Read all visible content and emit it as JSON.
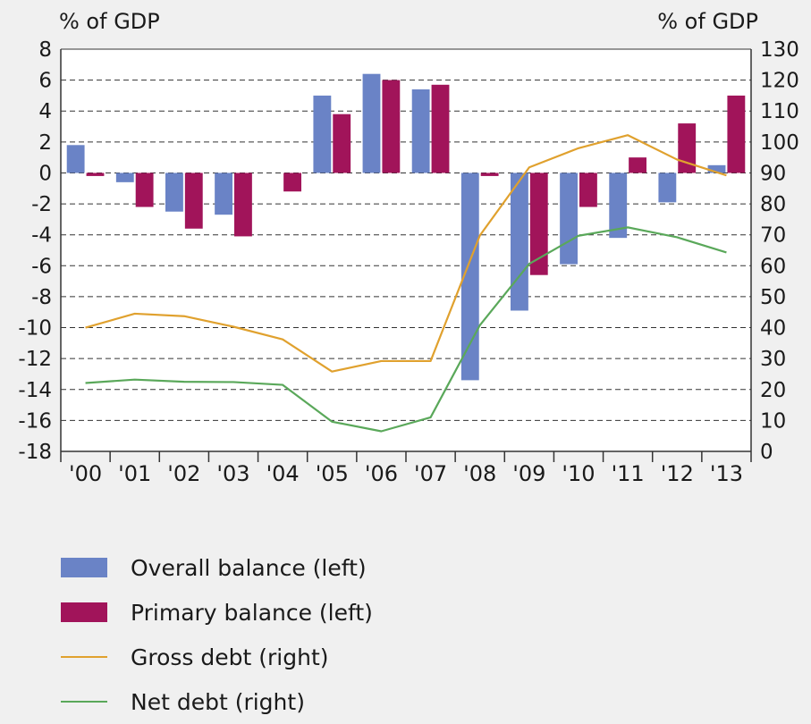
{
  "chart_data": {
    "type": "bar+line",
    "left_axis_label": "% of GDP",
    "right_axis_label": "% of GDP",
    "categories": [
      "'00",
      "'01",
      "'02",
      "'03",
      "'04",
      "'05",
      "'06",
      "'07",
      "'08",
      "'09",
      "'10",
      "'11",
      "'12",
      "'13"
    ],
    "left_ylim": [
      -18,
      8
    ],
    "left_ticks": [
      8,
      6,
      4,
      2,
      0,
      -2,
      -4,
      -6,
      -8,
      -10,
      -12,
      -14,
      -16,
      -18
    ],
    "right_ylim": [
      0,
      130
    ],
    "right_ticks": [
      130,
      120,
      110,
      100,
      90,
      80,
      70,
      60,
      50,
      40,
      30,
      20,
      10,
      0
    ],
    "grid": "dashed horizontal",
    "series": [
      {
        "name": "Overall balance (left)",
        "type": "bar",
        "axis": "left",
        "color": "#6a83c6",
        "values": [
          1.8,
          -0.6,
          -2.5,
          -2.7,
          0,
          5.0,
          6.4,
          5.4,
          -13.4,
          -8.9,
          -5.9,
          -4.2,
          -1.9,
          0.5
        ]
      },
      {
        "name": "Primary balance (left)",
        "type": "bar",
        "axis": "left",
        "color": "#a1145a",
        "values": [
          -0.2,
          -2.2,
          -3.6,
          -4.1,
          -1.2,
          3.8,
          6.0,
          5.7,
          -0.2,
          -6.6,
          -2.2,
          1.0,
          3.2,
          5.0
        ]
      },
      {
        "name": "Gross debt (right)",
        "type": "line",
        "axis": "right",
        "color": "#e0a12e",
        "values": [
          40,
          44.5,
          43.7,
          40.3,
          36.2,
          25.8,
          29.2,
          29.2,
          69.8,
          91.8,
          98.0,
          102.2,
          94.3,
          89.2
        ]
      },
      {
        "name": "Net debt (right)",
        "type": "line",
        "axis": "right",
        "color": "#5aa85a",
        "values": [
          22.1,
          23.2,
          22.5,
          22.4,
          21.5,
          9.6,
          6.5,
          11.0,
          40.8,
          60.6,
          69.7,
          72.4,
          69.2,
          64.3
        ]
      }
    ],
    "legend_position": "bottom"
  }
}
